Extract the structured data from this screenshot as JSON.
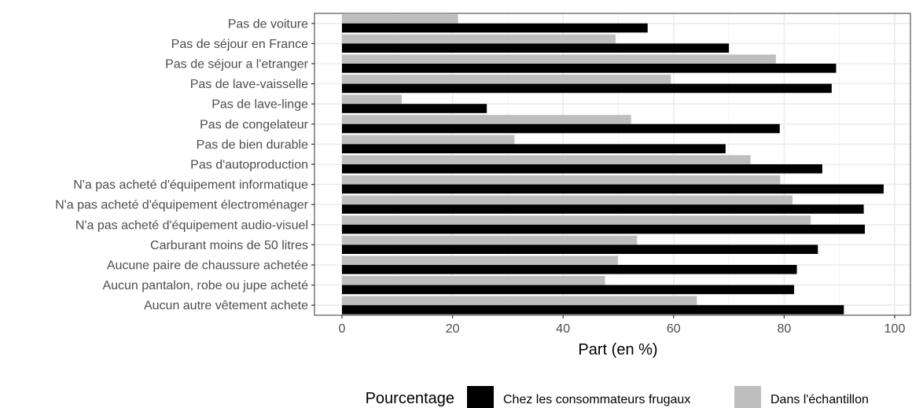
{
  "chart_data": {
    "type": "bar",
    "orientation": "horizontal",
    "categories": [
      "Pas de voiture",
      "Pas de séjour en France",
      "Pas de séjour a l'etranger",
      "Pas de lave-vaisselle",
      "Pas de lave-linge",
      "Pas de congelateur",
      "Pas de bien durable",
      "Pas d'autoproduction",
      "N'a pas acheté d'équipement informatique",
      "N'a pas acheté d'équipement électroménager",
      "N'a pas acheté d'équipement audio-visuel",
      "Carburant moins de 50 litres",
      "Aucune paire de chaussure achetée",
      "Aucun pantalon, robe ou jupe acheté",
      "Aucun autre vêtement achete"
    ],
    "series": [
      {
        "name": "Chez les consommateurs frugaux",
        "color": "#000000",
        "values": [
          55.3,
          70.0,
          89.4,
          88.6,
          26.2,
          79.2,
          69.4,
          86.9,
          98.0,
          94.4,
          94.6,
          86.1,
          82.3,
          81.8,
          90.8
        ]
      },
      {
        "name": "Dans l'échantillon",
        "color": "#bebebe",
        "values": [
          21.0,
          49.5,
          78.5,
          59.5,
          10.8,
          52.3,
          31.2,
          73.9,
          79.3,
          81.5,
          84.8,
          53.4,
          49.9,
          47.6,
          64.2
        ]
      }
    ],
    "xlabel": "Part (en %)",
    "ylabel": "",
    "xlim": [
      -5,
      103
    ],
    "xticks": [
      0,
      20,
      40,
      60,
      80,
      100
    ],
    "grid": true,
    "legend": {
      "title": "Pourcentage",
      "position": "bottom"
    }
  }
}
